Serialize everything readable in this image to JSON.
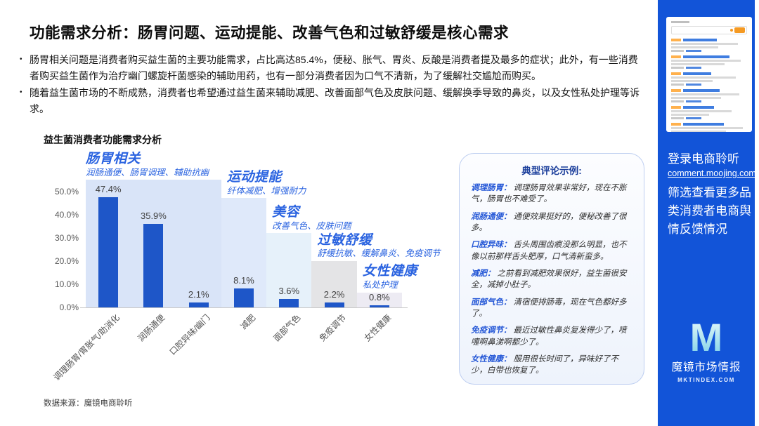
{
  "slide": {
    "title": "功能需求分析：肠胃问题、运动提能、改善气色和过敏舒缓是核心需求",
    "bullets": [
      "肠胃相关问题是消费者购买益生菌的主要功能需求，占比高达85.4%，便秘、胀气、胃炎、反酸是消费者提及最多的症状；此外，有一些消费者购买益生菌作为治疗幽门螺旋杆菌感染的辅助用药，也有一部分消费者因为口气不清新，为了缓解社交尴尬而购买。",
      "随着益生菌市场的不断成熟，消费者也希望通过益生菌来辅助减肥、改善面部气色及皮肤问题、缓解换季导致的鼻炎，以及女性私处护理等诉求。"
    ],
    "source_note": "数据来源：魔镜电商聆听"
  },
  "chart_data": {
    "type": "bar",
    "title": "益生菌消费者功能需求分析",
    "categories": [
      "调理肠胃/胃胀气/助消化",
      "润肠通便",
      "口腔异味/幽门",
      "减肥",
      "面部气色",
      "免疫调节",
      "女性健康"
    ],
    "values": [
      47.4,
      35.9,
      2.1,
      8.1,
      3.6,
      2.2,
      0.8
    ],
    "value_labels": [
      "47.4%",
      "35.9%",
      "2.1%",
      "8.1%",
      "3.6%",
      "2.2%",
      "0.8%"
    ],
    "yticks": [
      "0.0%",
      "10.0%",
      "20.0%",
      "30.0%",
      "40.0%",
      "50.0%"
    ],
    "ylim": [
      0,
      55
    ],
    "grid": false,
    "legend": "none",
    "bar_color": "#1e56c8",
    "accent_label_color": "#2a63e0",
    "groups": [
      {
        "name": "肠胃相关",
        "desc": "润肠通便、肠胃调理、辅助抗幽",
        "slots": [
          0,
          2
        ],
        "band_top_pct": 55,
        "band_color": "#d9e4f8"
      },
      {
        "name": "运动提能",
        "desc": "纤体减肥、增强耐力",
        "slots": [
          3,
          3
        ],
        "band_top_pct": 47,
        "band_color": "#dfe9fa"
      },
      {
        "name": "美容",
        "desc": "改善气色、皮肤问题",
        "slots": [
          4,
          4
        ],
        "band_top_pct": 32,
        "band_color": "#e6f1fa"
      },
      {
        "name": "过敏舒缓",
        "desc": "舒缓抗敏、缓解鼻炎、免疫调节",
        "slots": [
          5,
          5
        ],
        "band_top_pct": 20,
        "band_color": "#e4e4e6"
      },
      {
        "name": "女性健康",
        "desc": "私处护理",
        "slots": [
          6,
          6
        ],
        "band_top_pct": 6.5,
        "band_color": "#edebf3"
      }
    ]
  },
  "comments_panel": {
    "title": "典型评论示例:",
    "items": [
      {
        "keyword": "调理肠胃：",
        "text": "调理肠胃效果非常好，现在不胀气，肠胃也不难受了。"
      },
      {
        "keyword": "润肠通便：",
        "text": "通便效果挺好的，便秘改善了很多。"
      },
      {
        "keyword": "口腔异味：",
        "text": "舌头周围齿痕没那么明显，也不像以前那样舌头肥厚，口气清新蛮多。"
      },
      {
        "keyword": "减肥：",
        "text": "之前看到减肥效果很好，益生菌很安全，减掉小肚子。"
      },
      {
        "keyword": "面部气色：",
        "text": "清宿便排肠毒，现在气色都好多了。"
      },
      {
        "keyword": "免疫调节：",
        "text": "最近过敏性鼻炎复发得少了，喷嚏啊鼻涕啊都少了。"
      },
      {
        "keyword": "女性健康：",
        "text": "服用很长时间了，异味好了不少，白带也恢复了。"
      }
    ]
  },
  "sidebar": {
    "bg_color": "#1254d8",
    "login_title": "登录电商聆听",
    "login_url": "comment.moojing.com",
    "description": "筛选查看更多品类消费者电商舆情反馈情况",
    "logo_letter": "M",
    "logo_name": "魔镜市场情报",
    "logo_domain": "MKTINDEX.COM"
  }
}
